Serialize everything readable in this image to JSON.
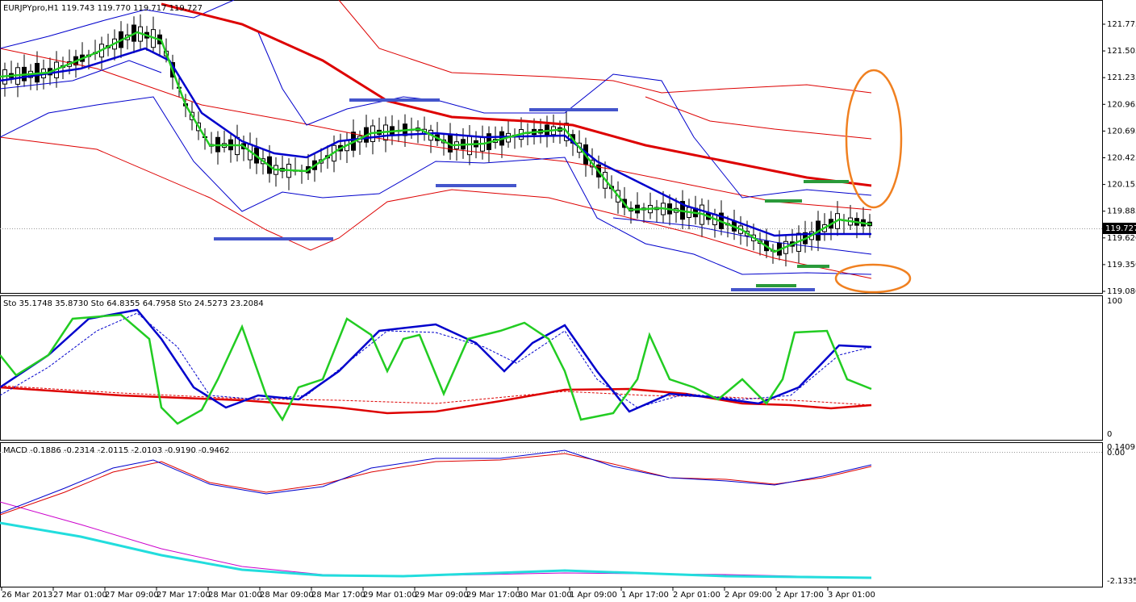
{
  "main_panel": {
    "symbol_info": "EURJPYpro,H1  119.743 119.770 119.717 119.727",
    "price_axis": [
      "121.775",
      "121.505",
      "121.235",
      "120.965",
      "120.695",
      "120.425",
      "120.155",
      "119.885",
      "119.620",
      "119.350",
      "119.080"
    ],
    "current_price": "119.727"
  },
  "stochastic_panel": {
    "label": "Sto 35.1748 35.8730  Sto 64.8355 64.7958  Sto 24.5273 23.2084",
    "axis_top": "100",
    "axis_bottom": "0"
  },
  "macd_panel": {
    "label": "MACD -0.1886 -0.2314 -2.0115 -2.0103 -0.9190 -0.9462",
    "axis_top": "0.1409",
    "axis_zero": "0.00",
    "axis_bottom": "-2.1335"
  },
  "time_axis": [
    "26 Mar 2013",
    "27 Mar 01:00",
    "27 Mar 09:00",
    "27 Mar 17:00",
    "28 Mar 01:00",
    "28 Mar 09:00",
    "28 Mar 17:00",
    "29 Mar 01:00",
    "29 Mar 09:00",
    "29 Mar 17:00",
    "30 Mar 01:00",
    "1 Apr 09:00",
    "1 Apr 17:00",
    "2 Apr 01:00",
    "2 Apr 09:00",
    "2 Apr 17:00",
    "3 Apr 01:00"
  ]
}
